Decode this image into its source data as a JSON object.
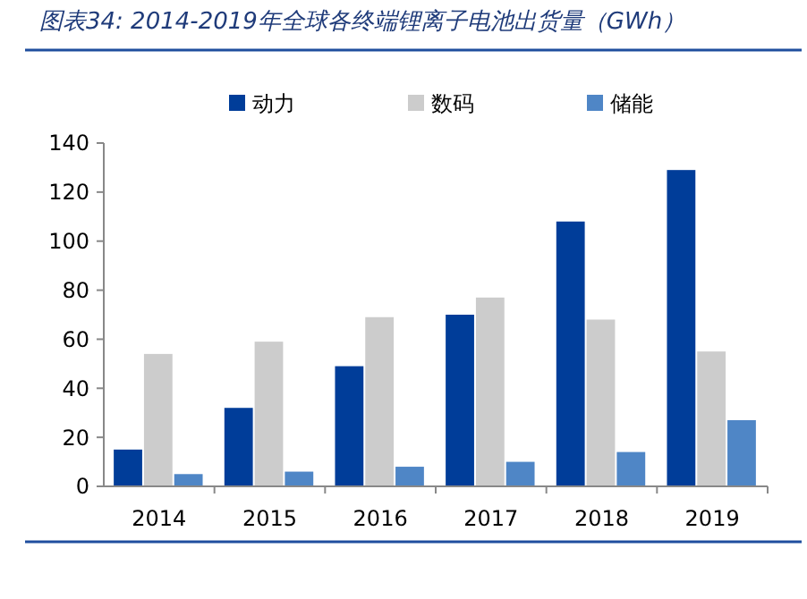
{
  "chart_data": {
    "type": "bar",
    "title": "图表34: 2014-2019年全球各终端锂离子电池出货量（GWh）",
    "categories": [
      "2014",
      "2015",
      "2016",
      "2017",
      "2018",
      "2019"
    ],
    "series": [
      {
        "name": "动力",
        "color": "#003d99",
        "values": [
          15,
          32,
          49,
          70,
          108,
          129
        ]
      },
      {
        "name": "数码",
        "color": "#cccccc",
        "values": [
          54,
          59,
          69,
          77,
          68,
          55
        ]
      },
      {
        "name": "储能",
        "color": "#4f86c6",
        "values": [
          5,
          6,
          8,
          10,
          14,
          27
        ]
      }
    ],
    "ylim": [
      0,
      140
    ],
    "yticks": [
      0,
      20,
      40,
      60,
      80,
      100,
      120,
      140
    ],
    "grid": false,
    "legend": "top"
  }
}
